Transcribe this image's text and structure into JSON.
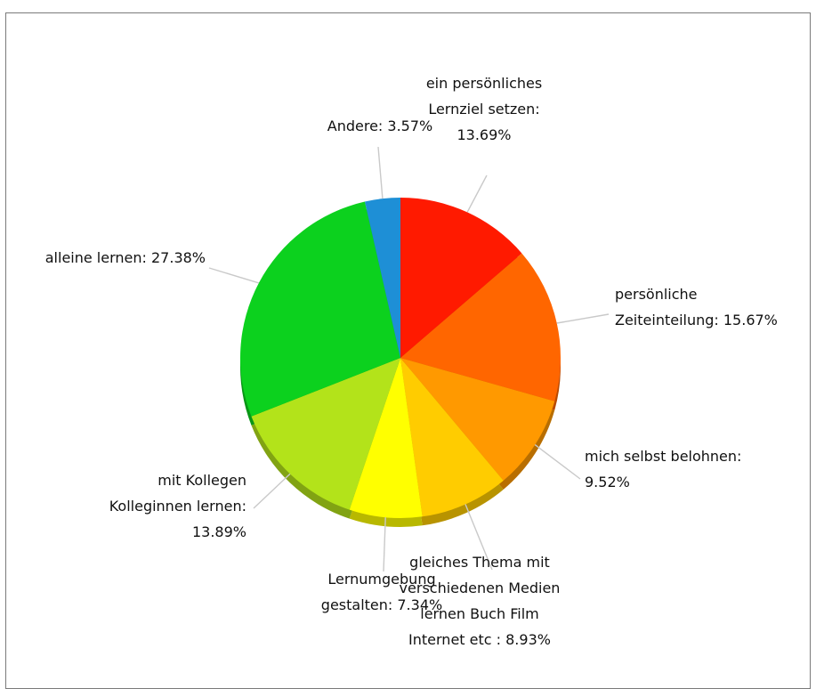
{
  "chart_data": {
    "type": "pie",
    "title": "",
    "slices": [
      {
        "label_lines": [
          "ein persönliches",
          "Lernziel setzen:",
          "13.69%"
        ],
        "value": 13.69,
        "color": "#ff1a00"
      },
      {
        "label_lines": [
          "persönliche",
          "Zeiteinteilung: 15.67%"
        ],
        "value": 15.67,
        "color": "#ff6600"
      },
      {
        "label_lines": [
          "mich selbst belohnen:",
          "9.52%"
        ],
        "value": 9.52,
        "color": "#ff9900"
      },
      {
        "label_lines": [
          "gleiches Thema mit",
          "verschiedenen Medien",
          "lernen  Buch  Film",
          "Internet etc   : 8.93%"
        ],
        "value": 8.93,
        "color": "#ffcc00"
      },
      {
        "label_lines": [
          "Lernumgebung",
          "gestalten: 7.34%"
        ],
        "value": 7.34,
        "color": "#ffff00"
      },
      {
        "label_lines": [
          "mit Kollegen",
          "Kolleginnen lernen:",
          "13.89%"
        ],
        "value": 13.89,
        "color": "#b3e31a"
      },
      {
        "label_lines": [
          "alleine lernen: 27.38%"
        ],
        "value": 27.38,
        "color": "#0cd11e"
      },
      {
        "label_lines": [
          "Andere: 3.57%"
        ],
        "value": 3.57,
        "color": "#1e8fd6"
      }
    ]
  }
}
